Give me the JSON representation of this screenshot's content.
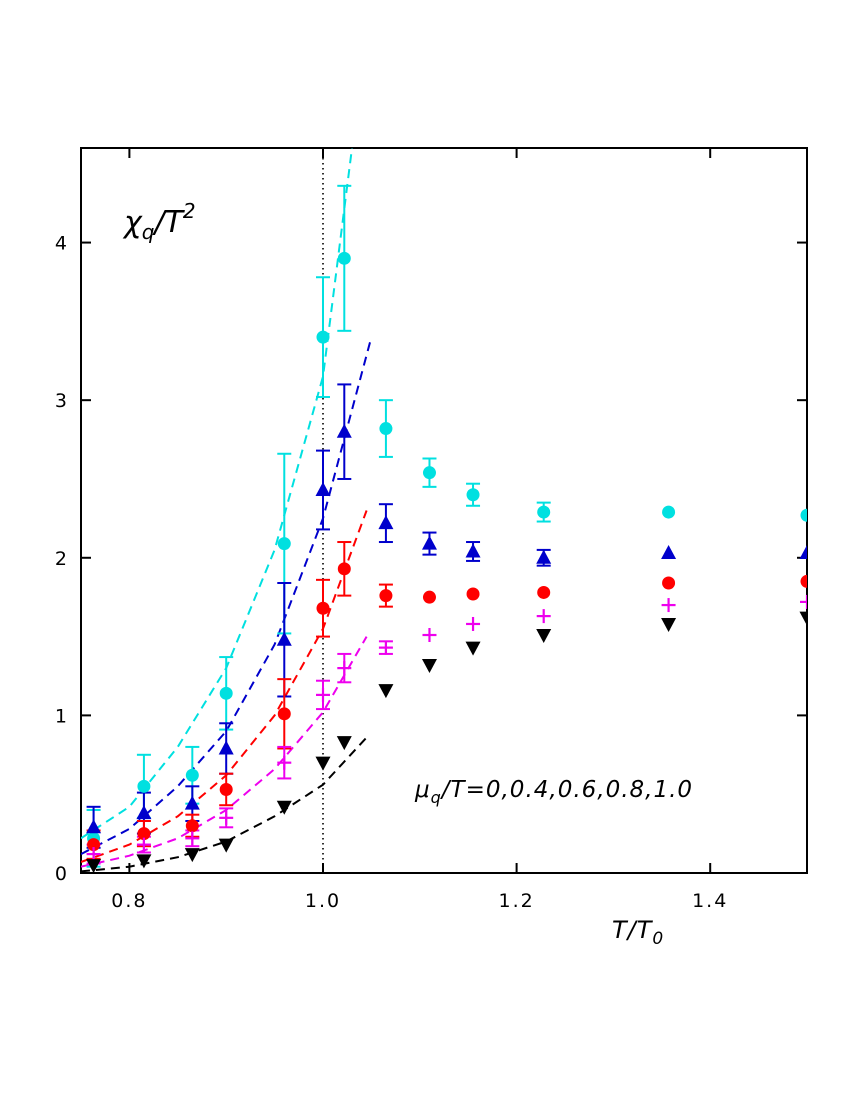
{
  "chart_data": {
    "type": "scatter",
    "title": "χq/T²",
    "title_parts": {
      "main": "χ",
      "sub": "q",
      "sep": "/T",
      "sup": "2"
    },
    "xlabel": "T/T0",
    "xlabel_parts": {
      "main": "T/T",
      "sub": "0"
    },
    "ylabel": "",
    "annotation": "μq/T=0,0.4,0.6,0.8,1.0",
    "annotation_parts": {
      "mu": "μ",
      "sub": "q",
      "rest": "/T=0,0.4,0.6,0.8,1.0"
    },
    "xlim": [
      0.75,
      1.5
    ],
    "ylim": [
      0,
      4.6
    ],
    "xticks": [
      0.8,
      1.0,
      1.2,
      1.4
    ],
    "xtick_labels": [
      "0.8",
      "1.0",
      "1.2",
      "1.4"
    ],
    "yticks": [
      0,
      1,
      2,
      3,
      4
    ],
    "ytick_labels": [
      "0",
      "1",
      "2",
      "3",
      "4"
    ],
    "vline_x": 1.0,
    "grid": false,
    "series": [
      {
        "color": "#00e0e0",
        "marker": "circle",
        "x": [
          0.763,
          0.815,
          0.865,
          0.9,
          0.96,
          1.0,
          1.022,
          1.065,
          1.11,
          1.155,
          1.228,
          1.357,
          1.5
        ],
        "y": [
          0.22,
          0.55,
          0.62,
          1.14,
          2.09,
          3.4,
          3.9,
          2.82,
          2.54,
          2.4,
          2.29,
          2.29,
          2.27
        ],
        "err": [
          0.18,
          0.2,
          0.18,
          0.23,
          0.57,
          0.38,
          0.46,
          0.18,
          0.09,
          0.07,
          0.06,
          0.0,
          0.0
        ],
        "fit": [
          [
            0.75,
            0.22
          ],
          [
            0.8,
            0.42
          ],
          [
            0.85,
            0.8
          ],
          [
            0.9,
            1.3
          ],
          [
            0.95,
            2.05
          ],
          [
            1.0,
            3.15
          ],
          [
            1.03,
            4.6
          ]
        ]
      },
      {
        "color": "#0000cc",
        "marker": "triangle-up",
        "x": [
          0.763,
          0.815,
          0.865,
          0.9,
          0.96,
          1.0,
          1.022,
          1.065,
          1.11,
          1.155,
          1.228,
          1.357,
          1.5
        ],
        "y": [
          0.29,
          0.38,
          0.44,
          0.79,
          1.48,
          2.43,
          2.8,
          2.22,
          2.09,
          2.04,
          2.0,
          2.03,
          2.03
        ],
        "err": [
          0.13,
          0.13,
          0.11,
          0.16,
          0.36,
          0.25,
          0.3,
          0.12,
          0.07,
          0.06,
          0.05,
          0.0,
          0.0
        ],
        "fit": [
          [
            0.75,
            0.12
          ],
          [
            0.8,
            0.28
          ],
          [
            0.85,
            0.55
          ],
          [
            0.9,
            0.9
          ],
          [
            0.95,
            1.45
          ],
          [
            1.0,
            2.25
          ],
          [
            1.05,
            3.4
          ]
        ]
      },
      {
        "color": "#ff0000",
        "marker": "circle",
        "x": [
          0.763,
          0.815,
          0.865,
          0.9,
          0.96,
          1.0,
          1.022,
          1.065,
          1.11,
          1.155,
          1.228,
          1.357,
          1.5
        ],
        "y": [
          0.18,
          0.25,
          0.3,
          0.53,
          1.01,
          1.68,
          1.93,
          1.76,
          1.75,
          1.77,
          1.78,
          1.84,
          1.85
        ],
        "err": [
          0.09,
          0.08,
          0.07,
          0.1,
          0.22,
          0.18,
          0.17,
          0.07,
          0.0,
          0.0,
          0.0,
          0.0,
          0.0
        ],
        "fit": [
          [
            0.75,
            0.07
          ],
          [
            0.8,
            0.18
          ],
          [
            0.85,
            0.36
          ],
          [
            0.9,
            0.62
          ],
          [
            0.95,
            1.0
          ],
          [
            1.0,
            1.55
          ],
          [
            1.045,
            2.3
          ]
        ]
      },
      {
        "color": "#ee00ee",
        "marker": "plus",
        "x": [
          0.763,
          0.815,
          0.865,
          0.9,
          0.96,
          1.0,
          1.022,
          1.065,
          1.11,
          1.155,
          1.228,
          1.357,
          1.5
        ],
        "y": [
          0.12,
          0.18,
          0.22,
          0.35,
          0.7,
          1.13,
          1.3,
          1.43,
          1.51,
          1.58,
          1.63,
          1.7,
          1.72
        ],
        "err": [
          0.06,
          0.05,
          0.05,
          0.06,
          0.1,
          0.09,
          0.09,
          0.04,
          0.0,
          0.0,
          0.0,
          0.0,
          0.0
        ],
        "fit": [
          [
            0.75,
            0.04
          ],
          [
            0.8,
            0.11
          ],
          [
            0.85,
            0.22
          ],
          [
            0.9,
            0.4
          ],
          [
            0.95,
            0.66
          ],
          [
            1.0,
            1.02
          ],
          [
            1.045,
            1.5
          ]
        ]
      },
      {
        "color": "#000000",
        "marker": "triangle-down",
        "x": [
          0.763,
          0.815,
          0.865,
          0.9,
          0.96,
          1.0,
          1.022,
          1.065,
          1.11,
          1.155,
          1.228,
          1.357,
          1.5
        ],
        "y": [
          0.05,
          0.08,
          0.12,
          0.18,
          0.42,
          0.7,
          0.83,
          1.16,
          1.32,
          1.43,
          1.51,
          1.58,
          1.62
        ],
        "err": [
          0,
          0,
          0,
          0,
          0,
          0,
          0,
          0,
          0,
          0,
          0,
          0,
          0
        ],
        "fit": [
          [
            0.75,
            0.01
          ],
          [
            0.8,
            0.04
          ],
          [
            0.85,
            0.1
          ],
          [
            0.9,
            0.2
          ],
          [
            0.95,
            0.36
          ],
          [
            1.0,
            0.56
          ],
          [
            1.045,
            0.86
          ]
        ]
      }
    ]
  }
}
